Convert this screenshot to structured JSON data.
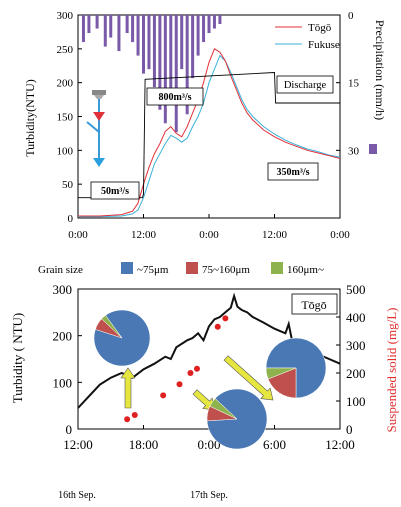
{
  "colors": {
    "togo": "#e0303a",
    "fukuse": "#3ab0d8",
    "precip": "#7a5aa8",
    "turb2": "#111111",
    "ss": "#e02020",
    "pie_blue": "#4a78b4",
    "pie_red": "#c0504d",
    "pie_green": "#8eb24e",
    "arrow": "#e6e640",
    "ssaxis": "#e03030"
  },
  "chart_data": [
    {
      "type": "line",
      "ylabel": "Turbidity(NTU)",
      "y2label": "Precipitation (mm/h)",
      "ylim": [
        0,
        300
      ],
      "y2lim": [
        0,
        45
      ],
      "y2_inverted": true,
      "yticks": [
        "0",
        "50",
        "100",
        "150",
        "200",
        "250",
        "300"
      ],
      "y2ticks": [
        "0",
        "15",
        "30"
      ],
      "xticks": [
        "0:00",
        "12:00",
        "0:00",
        "12:00",
        "0:00"
      ],
      "legend_position": "top-right",
      "series": [
        {
          "name": "Tōgō",
          "x": [
            0,
            4,
            8,
            10,
            11,
            12,
            13,
            14,
            15,
            16,
            17,
            18,
            19,
            20,
            21,
            22,
            23,
            24,
            25,
            26,
            27,
            28,
            29,
            30,
            31,
            32,
            34,
            36,
            38,
            40,
            42,
            44,
            46,
            48
          ],
          "y": [
            3,
            3,
            5,
            10,
            22,
            50,
            75,
            95,
            110,
            128,
            135,
            125,
            120,
            135,
            155,
            175,
            200,
            230,
            250,
            245,
            232,
            210,
            190,
            170,
            155,
            145,
            130,
            120,
            112,
            106,
            100,
            96,
            92,
            88
          ]
        },
        {
          "name": "Fukuse",
          "x": [
            0,
            4,
            8,
            10,
            11,
            12,
            13,
            14,
            15,
            16,
            17,
            18,
            19,
            20,
            21,
            22,
            23,
            24,
            25,
            26,
            27,
            28,
            29,
            30,
            31,
            32,
            34,
            36,
            38,
            40,
            42,
            44,
            46,
            48
          ],
          "y": [
            2,
            2,
            3,
            6,
            12,
            30,
            55,
            80,
            95,
            110,
            122,
            118,
            112,
            118,
            135,
            150,
            170,
            200,
            220,
            240,
            232,
            215,
            195,
            175,
            160,
            150,
            135,
            124,
            115,
            108,
            102,
            98,
            93,
            90
          ]
        },
        {
          "name": "Discharge",
          "x": [
            0,
            11.8,
            12,
            12.3,
            36,
            36.2,
            48
          ],
          "y": [
            30,
            30,
            35,
            205,
            215,
            170,
            170
          ]
        },
        {
          "name": "Precipitation",
          "type": "bar",
          "x": [
            1,
            2,
            3.5,
            5,
            6,
            7.5,
            9,
            10,
            11,
            12,
            13,
            14,
            15,
            16,
            17,
            18,
            19,
            20,
            21,
            22,
            23,
            24,
            25,
            26
          ],
          "y": [
            6,
            4,
            3,
            7,
            5,
            8,
            4,
            6,
            9,
            13,
            12,
            16,
            21,
            24,
            18,
            26,
            12,
            22,
            14,
            9,
            6,
            4,
            3,
            2
          ]
        }
      ],
      "annotations": {
        "discharge": "Discharge",
        "q_low": "50m³/s",
        "q_high": "800m³/s",
        "q_mid": "350m³/s"
      }
    },
    {
      "type": "line",
      "ylabel": "Turbidity ( NTU)",
      "y2label": "Suspended solid (mg/L)",
      "ylim": [
        0,
        300
      ],
      "y2lim": [
        0,
        500
      ],
      "yticks": [
        "0",
        "100",
        "200",
        "300"
      ],
      "y2ticks": [
        "0",
        "100",
        "200",
        "300",
        "400",
        "500"
      ],
      "xticks": [
        "12:00",
        "18:00",
        "0:00",
        "6:00",
        "12:00"
      ],
      "xdates": [
        "16th Sep.",
        "17th Sep."
      ],
      "station": "Tōgō",
      "legend_title": "Grain size",
      "grain_classes": [
        "~75μm",
        "75~160μm",
        "160μm~"
      ],
      "series": [
        {
          "name": "Turbidity",
          "x": [
            12,
            13,
            14,
            15,
            16,
            17,
            18,
            19,
            20,
            20.5,
            21,
            22,
            22.5,
            23,
            23.5,
            24,
            24.5,
            25,
            25.5,
            26,
            26.3,
            26.6,
            27,
            27.5,
            28,
            29,
            30,
            31,
            31.3,
            31.6,
            32,
            33,
            34,
            35,
            36
          ],
          "y": [
            45,
            70,
            95,
            110,
            120,
            110,
            128,
            140,
            155,
            150,
            175,
            190,
            195,
            205,
            190,
            220,
            235,
            240,
            250,
            260,
            285,
            262,
            255,
            250,
            240,
            228,
            215,
            205,
            225,
            190,
            180,
            170,
            160,
            150,
            140
          ]
        },
        {
          "name": "Suspended solid",
          "type": "scatter",
          "x": [
            16.5,
            17.2,
            19.8,
            21.3,
            22.3,
            22.9,
            24.8,
            25.5
          ],
          "y": [
            35,
            50,
            120,
            160,
            200,
            215,
            365,
            395
          ]
        }
      ],
      "pies": [
        {
          "values": [
            90,
            7,
            3
          ]
        },
        {
          "values": [
            87,
            8,
            5
          ]
        },
        {
          "values": [
            75,
            19,
            6
          ]
        }
      ]
    }
  ]
}
